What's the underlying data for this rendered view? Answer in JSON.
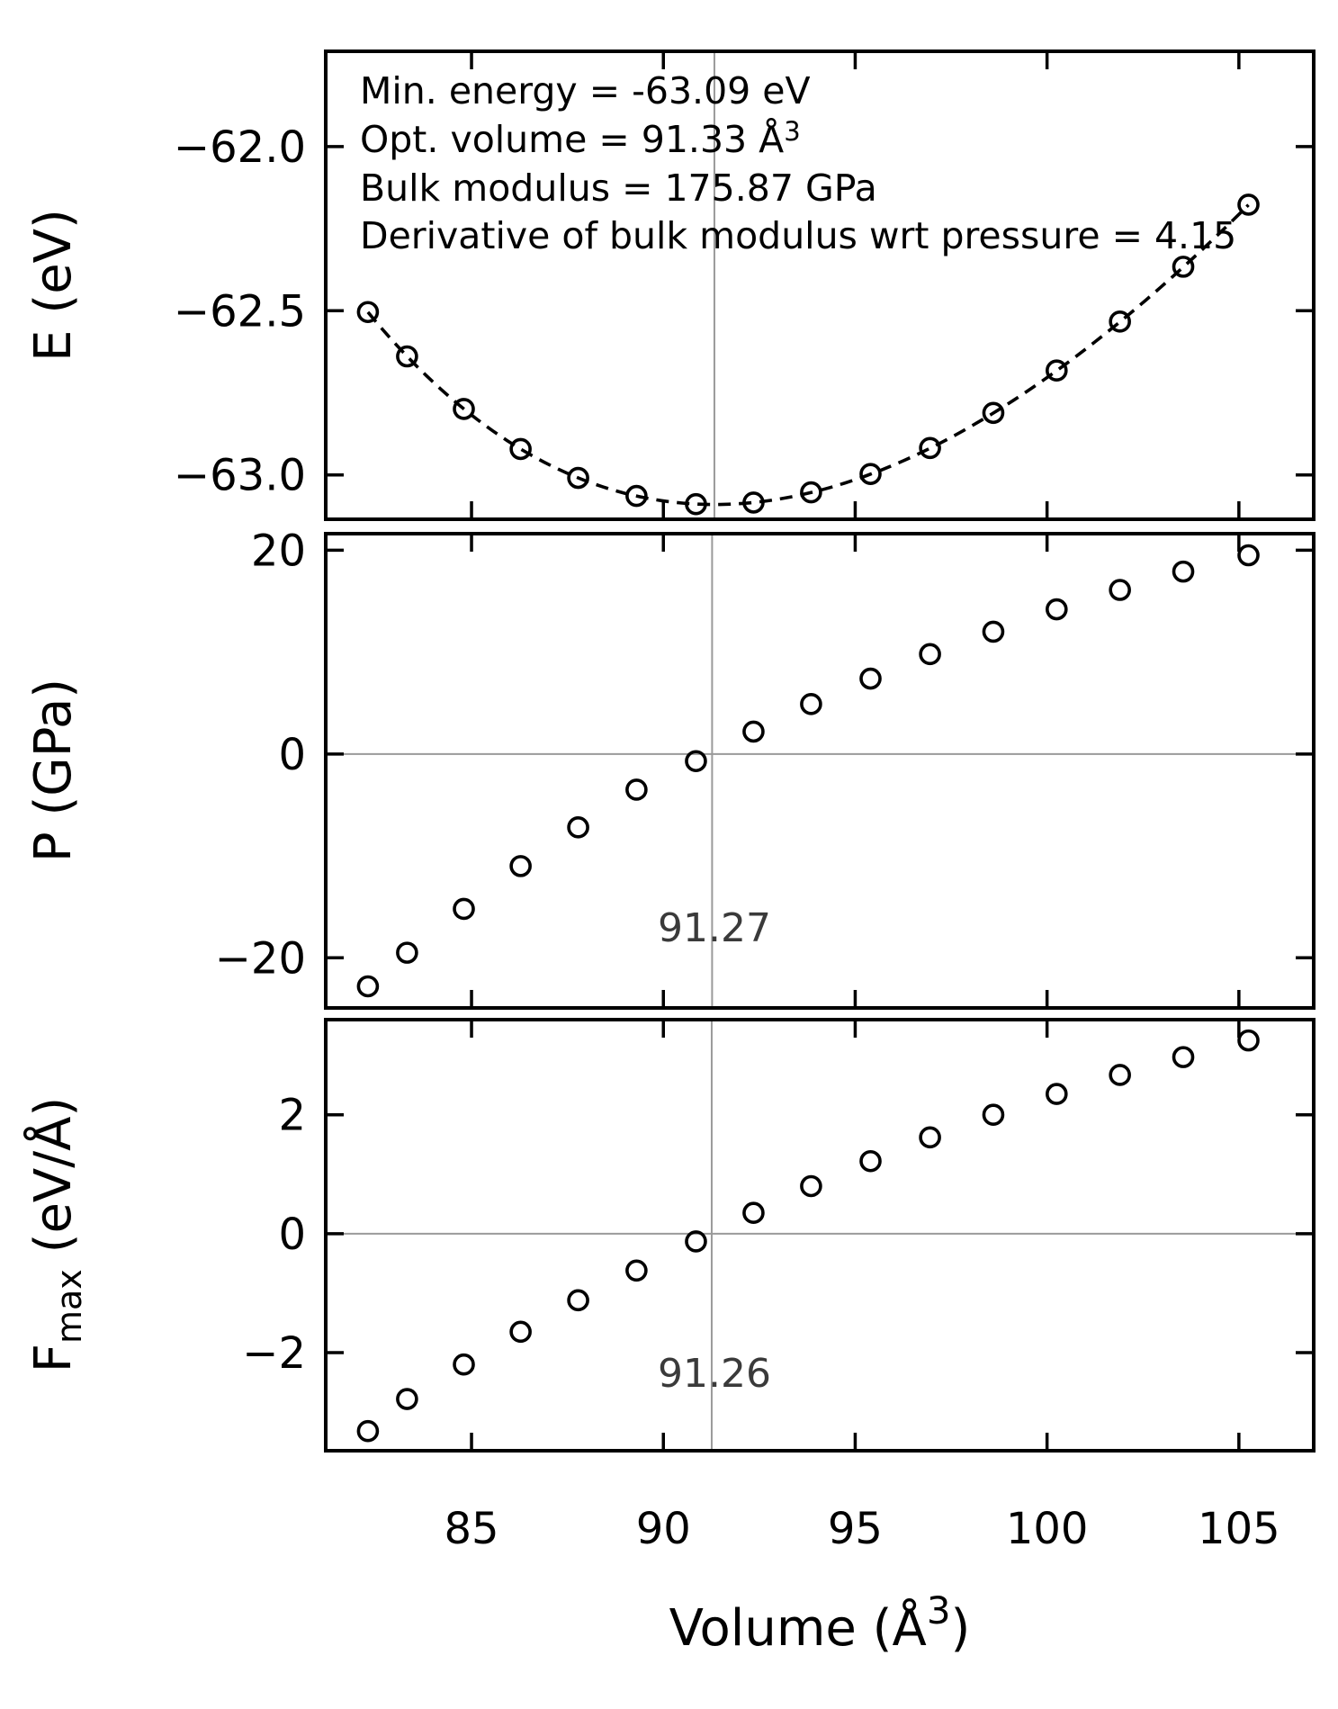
{
  "figure": {
    "annotation": {
      "line1": "Min. energy = -63.09 eV",
      "line2_pre": "Opt. volume = 91.33 Å",
      "line2_sup": "3",
      "line3": "Bulk modulus = 175.87 GPa",
      "line4": "Derivative of bulk modulus wrt pressure = 4.15"
    },
    "labels": {
      "e_ylabel": "E (eV)",
      "p_ylabel": "P (GPa)",
      "f_ylabel_pre": "F",
      "f_ylabel_sub": "max",
      "f_ylabel_post": " (eV/Å)",
      "xlabel_pre": "Volume (Å",
      "xlabel_sup": "3",
      "xlabel_post": ")",
      "p_crossing_label": "91.27",
      "f_crossing_label": "91.26"
    },
    "colors": {
      "marker": "#000000",
      "fit_line": "#000000",
      "refline": "#9a9a9a",
      "background": "#ffffff"
    }
  },
  "chart_data": [
    {
      "type": "scatter",
      "panel": "energy",
      "ylabel": "E (eV)",
      "x": [
        82.3,
        83.32,
        84.8,
        86.28,
        87.78,
        89.3,
        90.85,
        92.35,
        93.85,
        95.4,
        96.95,
        98.6,
        100.25,
        101.9,
        103.55,
        105.25
      ],
      "y": [
        -62.504,
        -62.639,
        -62.799,
        -62.921,
        -63.009,
        -63.064,
        -63.089,
        -63.084,
        -63.053,
        -62.997,
        -62.918,
        -62.811,
        -62.682,
        -62.533,
        -62.366,
        -62.177
      ],
      "fit": {
        "model": "birch-murnaghan",
        "min_energy_eV": -63.09,
        "opt_volume_A3": 91.33,
        "bulk_modulus_GPa": 175.87,
        "bulk_modulus_pressure_derivative": 4.15,
        "line_style": "dashed"
      },
      "ref_vline_x": 91.33,
      "yticks": [
        -62.0,
        -62.5,
        -63.0
      ],
      "yticklabels": [
        "−62.0",
        "−62.5",
        "−63.0"
      ],
      "ylim": [
        -63.135,
        -61.71
      ],
      "grid": false,
      "legend": "none"
    },
    {
      "type": "scatter",
      "panel": "pressure",
      "ylabel": "P (GPa)",
      "x": [
        82.3,
        83.32,
        84.8,
        86.28,
        87.78,
        89.3,
        90.85,
        92.35,
        93.85,
        95.4,
        96.95,
        98.6,
        100.25,
        101.9,
        103.55,
        105.25
      ],
      "y": [
        -22.8,
        -19.5,
        -15.2,
        -11.0,
        -7.2,
        -3.5,
        -0.7,
        2.2,
        4.9,
        7.4,
        9.8,
        12.0,
        14.2,
        16.1,
        17.9,
        19.5
      ],
      "ref_vline_x": 91.27,
      "ref_hline_y": 0,
      "crossing_annotation": "91.27",
      "yticks": [
        20,
        0,
        -20
      ],
      "yticklabels": [
        "20",
        "0",
        "−20"
      ],
      "ylim": [
        -24.92,
        21.62
      ],
      "grid": false,
      "legend": "none"
    },
    {
      "type": "scatter",
      "panel": "force",
      "ylabel": "Fmax (eV/Å)",
      "x": [
        82.3,
        83.32,
        84.8,
        86.28,
        87.78,
        89.3,
        90.85,
        92.35,
        93.85,
        95.4,
        96.95,
        98.6,
        100.25,
        101.9,
        103.55,
        105.25
      ],
      "y": [
        -3.32,
        -2.78,
        -2.2,
        -1.65,
        -1.12,
        -0.62,
        -0.13,
        0.35,
        0.8,
        1.22,
        1.62,
        2.0,
        2.35,
        2.67,
        2.97,
        3.25
      ],
      "ref_vline_x": 91.26,
      "ref_hline_y": 0,
      "crossing_annotation": "91.26",
      "yticks": [
        2,
        0,
        -2
      ],
      "yticklabels": [
        "2",
        "0",
        "−2"
      ],
      "ylim": [
        -3.65,
        3.6
      ],
      "grid": false,
      "legend": "none"
    }
  ],
  "shared_x": {
    "xlabel": "Volume (Å³)",
    "xticks": [
      85,
      90,
      95,
      100,
      105
    ],
    "xticklabels": [
      "85",
      "90",
      "95",
      "100",
      "105"
    ],
    "xlim": [
      81.2,
      106.95
    ]
  }
}
